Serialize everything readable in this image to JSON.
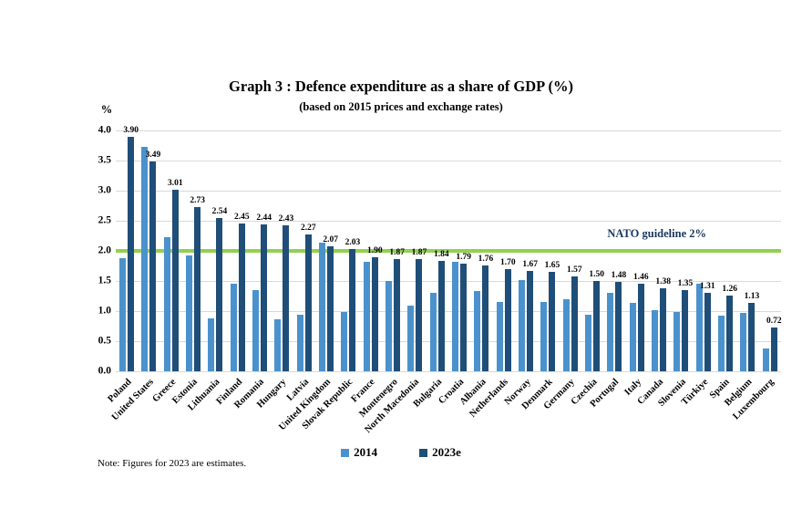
{
  "chart_data": {
    "type": "bar",
    "title": "Graph 3 : Defence expenditure as a share of GDP (%)",
    "subtitle": "(based on 2015 prices and exchange rates)",
    "unit_label": "%",
    "categories": [
      "Poland",
      "United States",
      "Greece",
      "Estonia",
      "Lithuania",
      "Finland",
      "Romania",
      "Hungary",
      "Latvia",
      "United Kingdom",
      "Slovak Republic",
      "France",
      "Montenegro",
      "North Macedonia",
      "Bulgaria",
      "Croatia",
      "Albania",
      "Netherlands",
      "Norway",
      "Denmark",
      "Germany",
      "Czechia",
      "Portugal",
      "Italy",
      "Canada",
      "Slovenia",
      "Türkiye",
      "Spain",
      "Belgium",
      "Luxembourg"
    ],
    "series": [
      {
        "name": "2014",
        "color": "#4b92cc",
        "show_data_labels": false,
        "values": [
          1.88,
          3.72,
          2.22,
          1.93,
          0.88,
          1.45,
          1.35,
          0.86,
          0.94,
          2.14,
          0.99,
          1.82,
          1.5,
          1.09,
          1.31,
          1.82,
          1.34,
          1.15,
          1.51,
          1.15,
          1.19,
          0.94,
          1.31,
          1.14,
          1.01,
          0.98,
          1.45,
          0.92,
          0.97,
          0.38
        ]
      },
      {
        "name": "2023e",
        "color": "#1f4e79",
        "show_data_labels": true,
        "values": [
          3.9,
          3.49,
          3.01,
          2.73,
          2.54,
          2.45,
          2.44,
          2.43,
          2.27,
          2.07,
          2.03,
          1.9,
          1.87,
          1.87,
          1.84,
          1.79,
          1.76,
          1.7,
          1.67,
          1.65,
          1.57,
          1.5,
          1.48,
          1.46,
          1.38,
          1.35,
          1.31,
          1.26,
          1.13,
          0.72
        ]
      }
    ],
    "ylim": [
      0,
      4.0
    ],
    "ytick_step": 0.5,
    "grid": true,
    "gridline_color": "#d9d9d9",
    "guideline": {
      "value": 2.0,
      "label": "NATO guideline 2%",
      "line_color": "#92d050",
      "label_color": "#17375e"
    },
    "legend_position": "bottom",
    "note": "Note: Figures for 2023 are estimates."
  }
}
